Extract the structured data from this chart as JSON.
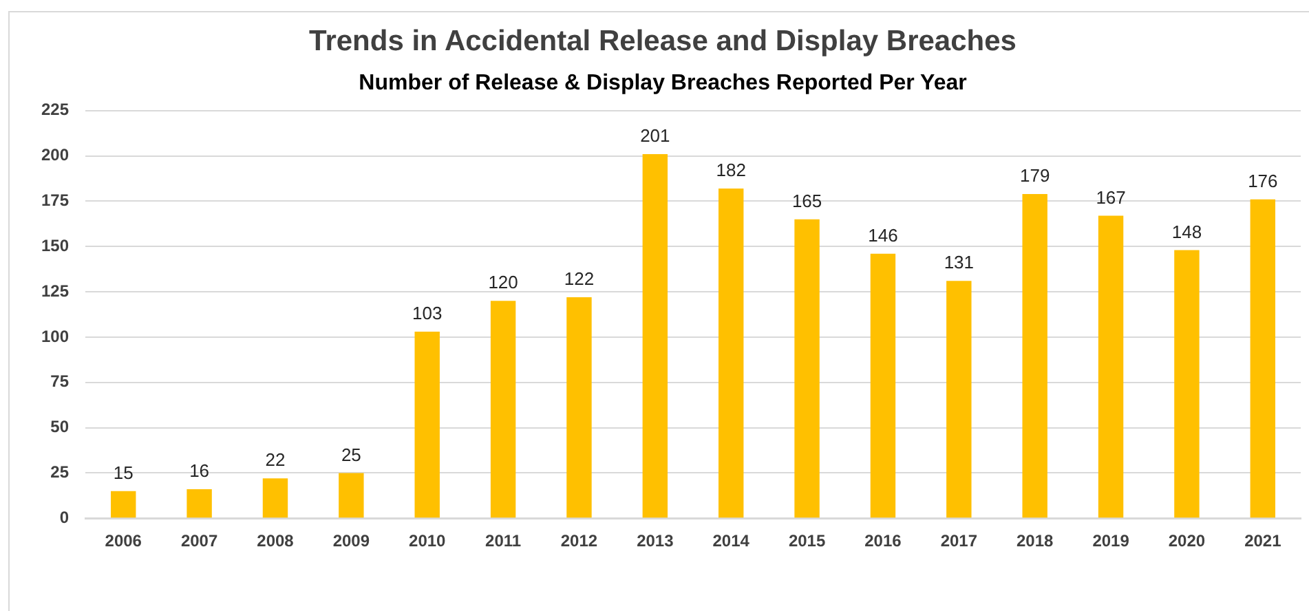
{
  "chart_data": {
    "type": "bar",
    "title": "Trends in Accidental Release and Display Breaches",
    "subtitle": "Number of Release & Display Breaches Reported Per Year",
    "categories": [
      "2006",
      "2007",
      "2008",
      "2009",
      "2010",
      "2011",
      "2012",
      "2013",
      "2014",
      "2015",
      "2016",
      "2017",
      "2018",
      "2019",
      "2020",
      "2021"
    ],
    "values": [
      15,
      16,
      22,
      25,
      103,
      120,
      122,
      201,
      182,
      165,
      146,
      131,
      179,
      167,
      148,
      176
    ],
    "color": "#ffc000",
    "ylim": [
      0,
      225
    ],
    "yticks": [
      0,
      25,
      50,
      75,
      100,
      125,
      150,
      175,
      200,
      225
    ],
    "grid": "y",
    "data_labels": true
  }
}
